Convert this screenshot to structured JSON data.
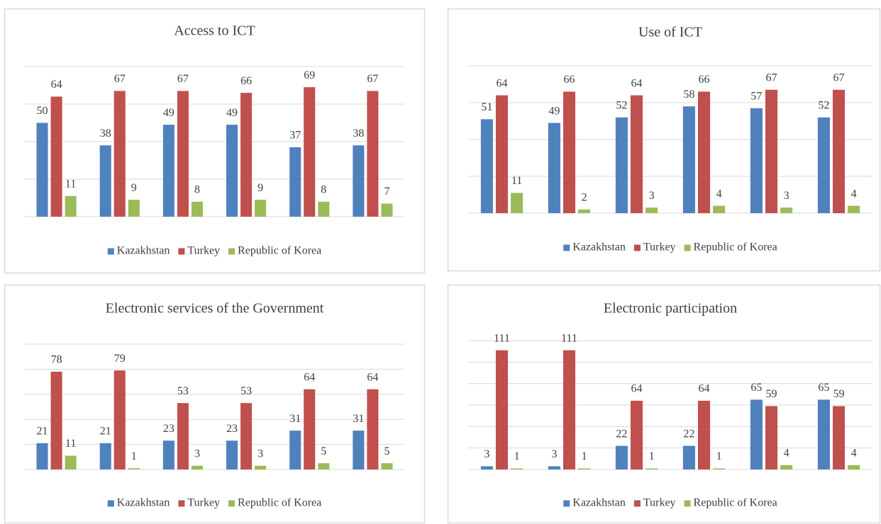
{
  "chart_data": [
    {
      "type": "bar",
      "title": "Access to ICT",
      "categories": [
        null,
        null,
        null,
        null,
        null,
        null
      ],
      "series": [
        {
          "name": "Kazakhstan",
          "color": "#4f81bd",
          "values": [
            50,
            38,
            49,
            49,
            37,
            38
          ]
        },
        {
          "name": "Turkey",
          "color": "#c0504d",
          "values": [
            64,
            67,
            67,
            66,
            69,
            67
          ]
        },
        {
          "name": "Republic of Korea",
          "color": "#9bbb59",
          "values": [
            11,
            9,
            8,
            9,
            8,
            7
          ]
        }
      ],
      "ylim": [
        0,
        80
      ],
      "yticks": [
        0,
        20,
        40,
        60,
        80
      ],
      "grid": true,
      "legend": "bottom"
    },
    {
      "type": "bar",
      "title": "Use of ICT",
      "categories": [
        null,
        null,
        null,
        null,
        null,
        null
      ],
      "series": [
        {
          "name": "Kazakhstan",
          "color": "#4f81bd",
          "values": [
            51,
            49,
            52,
            58,
            57,
            52
          ]
        },
        {
          "name": "Turkey",
          "color": "#c0504d",
          "values": [
            64,
            66,
            64,
            66,
            67,
            67
          ]
        },
        {
          "name": "Republic of Korea",
          "color": "#9bbb59",
          "values": [
            11,
            2,
            3,
            4,
            3,
            4
          ]
        }
      ],
      "ylim": [
        0,
        80
      ],
      "yticks": [
        0,
        20,
        40,
        60,
        80
      ],
      "grid": true,
      "legend": "bottom"
    },
    {
      "type": "bar",
      "title": "Electronic services of the Government",
      "categories": [
        null,
        null,
        null,
        null,
        null,
        null
      ],
      "series": [
        {
          "name": "Kazakhstan",
          "color": "#4f81bd",
          "values": [
            21,
            21,
            23,
            23,
            31,
            31
          ]
        },
        {
          "name": "Turkey",
          "color": "#c0504d",
          "values": [
            78,
            79,
            53,
            53,
            64,
            64
          ]
        },
        {
          "name": "Republic of Korea",
          "color": "#9bbb59",
          "values": [
            11,
            1,
            3,
            3,
            5,
            5
          ]
        }
      ],
      "ylim": [
        0,
        100
      ],
      "yticks": [
        0,
        20,
        40,
        60,
        80,
        100
      ],
      "grid": true,
      "legend": "bottom"
    },
    {
      "type": "bar",
      "title": "Electronic participation",
      "categories": [
        null,
        null,
        null,
        null,
        null,
        null
      ],
      "series": [
        {
          "name": "Kazakhstan",
          "color": "#4f81bd",
          "values": [
            3,
            3,
            22,
            22,
            65,
            65
          ]
        },
        {
          "name": "Turkey",
          "color": "#c0504d",
          "values": [
            111,
            111,
            64,
            64,
            59,
            59
          ]
        },
        {
          "name": "Republic of Korea",
          "color": "#9bbb59",
          "values": [
            1,
            1,
            1,
            1,
            4,
            4
          ]
        }
      ],
      "ylim": [
        0,
        120
      ],
      "yticks": [
        0,
        20,
        40,
        60,
        80,
        100,
        120
      ],
      "grid": true,
      "legend": "bottom"
    }
  ]
}
